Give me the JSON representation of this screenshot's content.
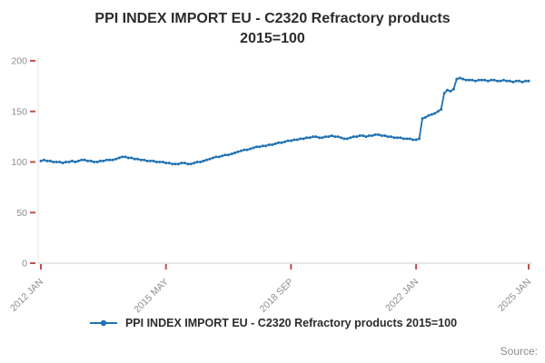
{
  "title": {
    "line1": "PPI INDEX IMPORT EU - C2320 Refractory products",
    "line2": "2015=100"
  },
  "source": {
    "label": "Source:"
  },
  "chart_data": {
    "type": "line",
    "title": "PPI INDEX IMPORT EU - C2320 Refractory products 2015=100",
    "legend": "PPI INDEX IMPORT EU - C2320 Refractory products 2015=100",
    "frequency": "monthly",
    "x_start": "2012 JAN",
    "x_end": "2025 JAN",
    "ylim": [
      0,
      200
    ],
    "y_ticks": [
      0,
      50,
      100,
      150,
      200
    ],
    "x_ticks": [
      {
        "label": "2012 JAN",
        "index": 0
      },
      {
        "label": "2015 MAY",
        "index": 40
      },
      {
        "label": "2018 SEP",
        "index": 80
      },
      {
        "label": "2022 JAN",
        "index": 120
      },
      {
        "label": "2025 JAN",
        "index": 156
      }
    ],
    "line_color": "#2172b3",
    "tick_color": "#c0504d",
    "axis_color": "#cccccc",
    "label_color": "#8c8c8c",
    "grid": false,
    "legend_position": "bottom",
    "values": [
      101,
      102,
      101,
      101,
      100,
      100,
      100,
      99,
      100,
      100,
      101,
      100,
      101,
      102,
      102,
      101,
      101,
      100,
      100,
      101,
      101,
      102,
      102,
      102,
      103,
      104,
      105,
      105,
      104,
      104,
      103,
      103,
      102,
      102,
      101,
      101,
      101,
      100,
      100,
      100,
      99,
      99,
      98,
      98,
      98,
      99,
      99,
      98,
      98,
      99,
      100,
      100,
      101,
      102,
      103,
      104,
      105,
      105,
      106,
      107,
      107,
      108,
      109,
      110,
      111,
      112,
      112,
      113,
      114,
      115,
      115,
      116,
      116,
      117,
      117,
      118,
      119,
      119,
      120,
      121,
      121,
      122,
      122,
      123,
      123,
      124,
      124,
      125,
      125,
      124,
      124,
      125,
      125,
      126,
      125,
      125,
      124,
      123,
      123,
      124,
      125,
      125,
      126,
      126,
      125,
      126,
      126,
      127,
      127,
      126,
      126,
      125,
      125,
      124,
      124,
      124,
      123,
      123,
      123,
      122,
      122,
      123,
      143,
      144,
      146,
      147,
      148,
      150,
      152,
      168,
      171,
      170,
      172,
      182,
      183,
      182,
      181,
      181,
      181,
      180,
      181,
      181,
      181,
      180,
      181,
      181,
      180,
      180,
      181,
      180,
      180,
      179,
      180,
      180,
      179,
      180,
      180
    ]
  }
}
